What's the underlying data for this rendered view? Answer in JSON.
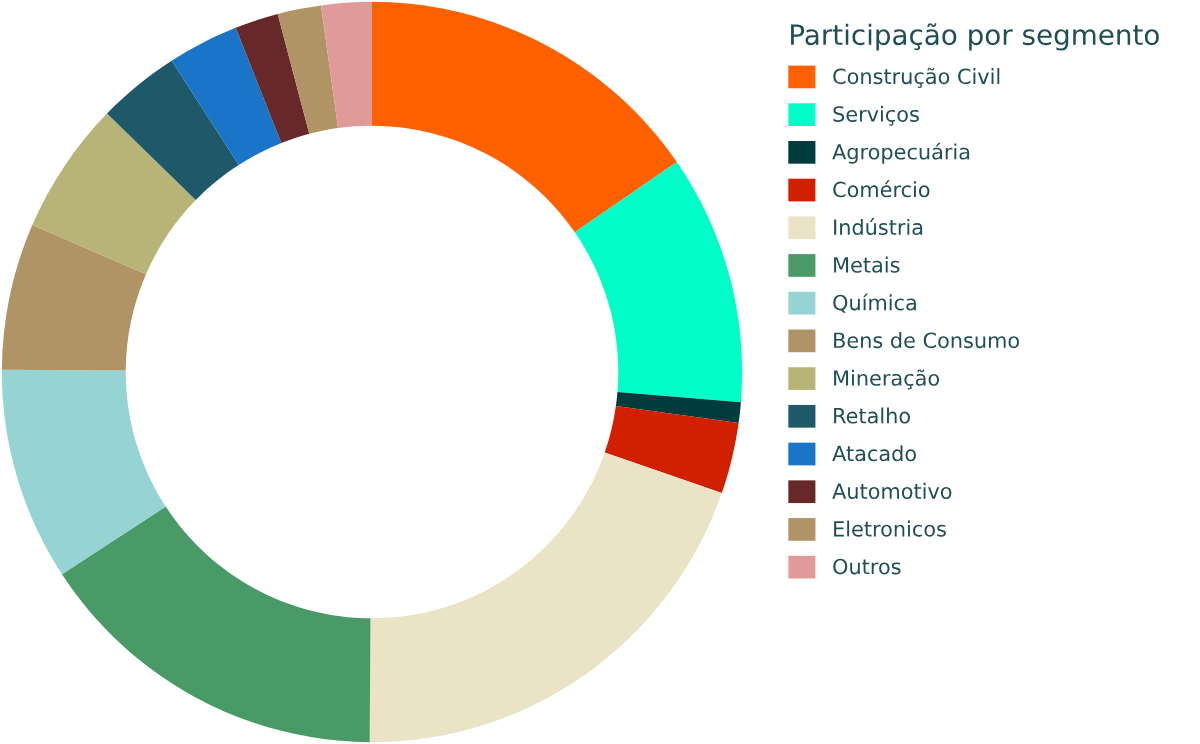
{
  "chart_data": {
    "type": "donut",
    "legend_title": "Participação por segmento",
    "legend": "right",
    "categories": [
      "Construção Civil",
      "Serviços",
      "Agropecuária",
      "Comércio",
      "Indústria",
      "Metais",
      "Química",
      "Bens de Consumo",
      "Mineração",
      "Retalho",
      "Atacado",
      "Automotivo",
      "Eletronicos",
      "Outros"
    ],
    "values": [
      15.4,
      10.9,
      0.9,
      3.1,
      19.8,
      15.7,
      9.3,
      6.4,
      5.8,
      3.6,
      3.1,
      1.9,
      1.9,
      2.2
    ],
    "colors": [
      "#ff6000",
      "#00ffc8",
      "#003c3c",
      "#d02000",
      "#ebe3c6",
      "#4a9a68",
      "#96d4d4",
      "#b09466",
      "#b8b478",
      "#1f5868",
      "#1a74c8",
      "#662828",
      "#b09466",
      "#e09a9a"
    ]
  }
}
